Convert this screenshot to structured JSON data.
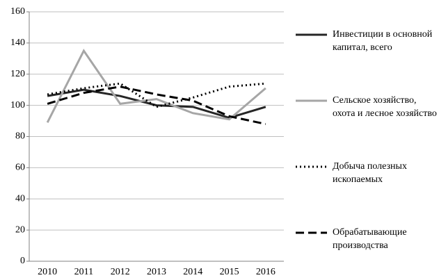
{
  "chart_data": {
    "type": "line",
    "categories": [
      "2010",
      "2011",
      "2012",
      "2013",
      "2014",
      "2015",
      "2016"
    ],
    "series": [
      {
        "name": "Инвестиции в основной капитал, всего",
        "color": "#262626",
        "dash": "solid",
        "values": [
          106,
          110,
          106,
          100,
          99,
          92,
          99
        ]
      },
      {
        "name": "Сельское хозяйство, охота и лесное хозяйство",
        "color": "#a6a6a6",
        "dash": "solid",
        "values": [
          89,
          135,
          101,
          104,
          95,
          91,
          111
        ]
      },
      {
        "name": "Добыча полезных ископаемых",
        "color": "#000000",
        "dash": "dotted",
        "values": [
          107,
          111,
          114,
          99,
          105,
          112,
          114
        ]
      },
      {
        "name": "Обрабатывающие производства",
        "color": "#000000",
        "dash": "dashed",
        "values": [
          101,
          108,
          112,
          107,
          103,
          93,
          88
        ]
      }
    ],
    "ylim": [
      0,
      160
    ],
    "yticks": [
      0,
      20,
      40,
      60,
      80,
      100,
      120,
      140,
      160
    ],
    "grid": true
  }
}
